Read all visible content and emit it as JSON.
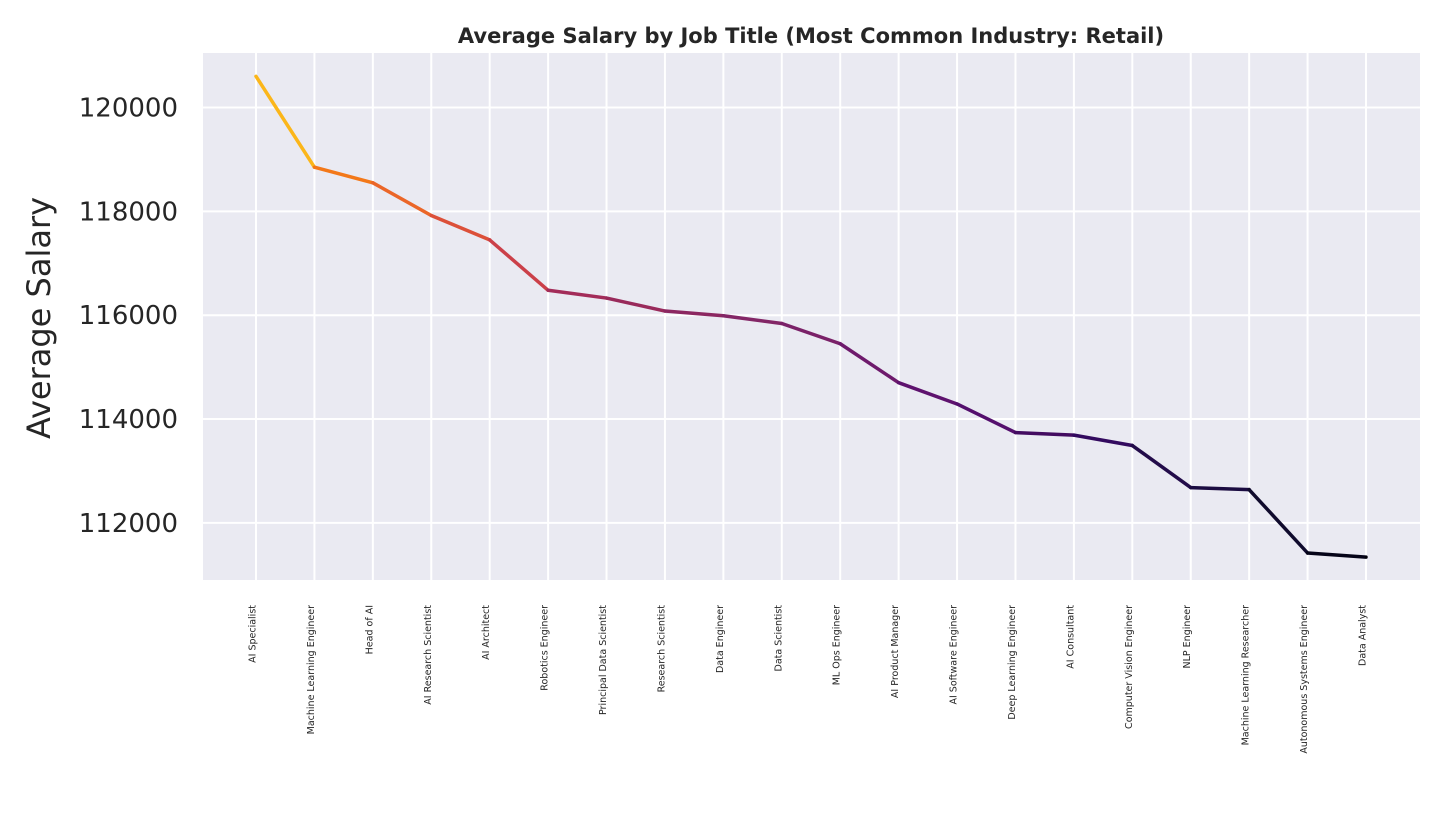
{
  "chart_data": {
    "type": "line",
    "title": "Average Salary by Job Title (Most Common Industry: Retail)",
    "xlabel": "",
    "ylabel": "Average Salary",
    "categories": [
      "AI Specialist",
      "Machine Learning Engineer",
      "Head of AI",
      "AI Research Scientist",
      "AI Architect",
      "Robotics Engineer",
      "Principal Data Scientist",
      "Research Scientist",
      "Data Engineer",
      "Data Scientist",
      "ML Ops Engineer",
      "AI Product Manager",
      "AI Software Engineer",
      "Deep Learning Engineer",
      "AI Consultant",
      "Computer Vision Engineer",
      "NLP Engineer",
      "Machine Learning Researcher",
      "Autonomous Systems Engineer",
      "Data Analyst"
    ],
    "values": [
      120600,
      118850,
      118550,
      117920,
      117450,
      116480,
      116330,
      116080,
      115990,
      115840,
      115450,
      114700,
      114290,
      113740,
      113690,
      113490,
      112680,
      112640,
      111420,
      111340
    ],
    "ylim": [
      110900,
      121050
    ],
    "yticks": [
      112000,
      114000,
      116000,
      118000,
      120000
    ],
    "grid": true,
    "legend": "none",
    "colors": [
      "#fbb61a",
      "#f37819",
      "#eb6628",
      "#dc5039",
      "#cb4049",
      "#a32c59",
      "#992a5b",
      "#8c2761",
      "#832666",
      "#7a2168",
      "#6e1a6c",
      "#5e126e",
      "#540f6d",
      "#430b60",
      "#330a5f",
      "#230c4a",
      "#1b0c41",
      "#100b2d",
      "#050418",
      "#000004"
    ],
    "background": "#eaeaf2",
    "gridcolor": "#ffffff"
  }
}
